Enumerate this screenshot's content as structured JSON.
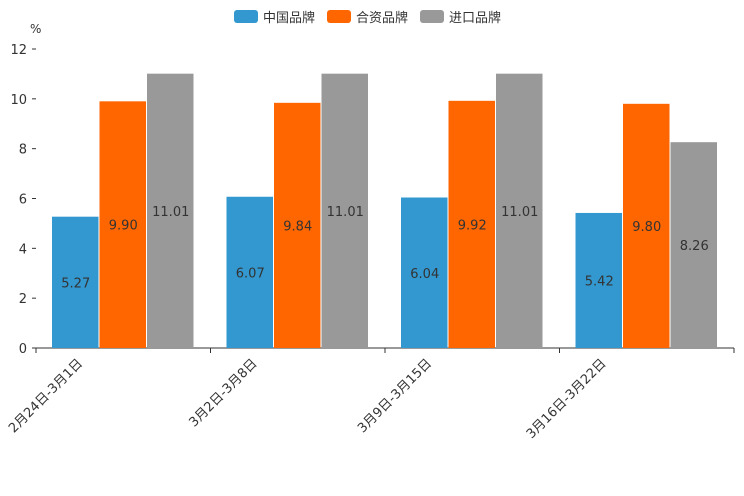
{
  "chart_data": {
    "type": "bar",
    "ylabel": "%",
    "ylim": [
      0,
      12
    ],
    "yticks": [
      0,
      2,
      4,
      6,
      8,
      10,
      12
    ],
    "categories": [
      "2月24日-3月1日",
      "3月2日-3月8日",
      "3月9日-3月15日",
      "3月16日-3月22日"
    ],
    "series": [
      {
        "name": "中国品牌",
        "color": "#3398d0",
        "values": [
          5.27,
          6.07,
          6.04,
          5.42
        ],
        "labels": [
          "5.27",
          "6.07",
          "6.04",
          "5.42"
        ]
      },
      {
        "name": "合资品牌",
        "color": "#ff6600",
        "values": [
          9.9,
          9.84,
          9.92,
          9.8
        ],
        "labels": [
          "9.90",
          "9.84",
          "9.92",
          "9.80"
        ]
      },
      {
        "name": "进口品牌",
        "color": "#999999",
        "values": [
          11.01,
          11.01,
          11.01,
          8.26
        ],
        "labels": [
          "11.01",
          "11.01",
          "11.01",
          "8.26"
        ]
      }
    ],
    "grid": false,
    "legend": "top-center"
  }
}
